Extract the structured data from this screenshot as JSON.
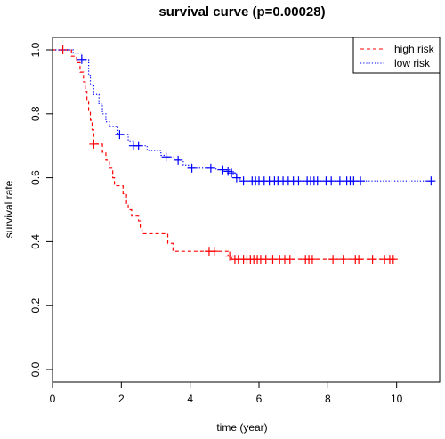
{
  "chart_data": {
    "type": "line",
    "title": "survival curve (p=0.00028)",
    "xlabel": "time (year)",
    "ylabel": "survival rate",
    "xlim": [
      0,
      11.25
    ],
    "ylim": [
      0,
      1
    ],
    "x_ticks": [
      "0",
      "2",
      "4",
      "6",
      "8",
      "10"
    ],
    "y_ticks": [
      "0.0",
      "0.2",
      "0.4",
      "0.6",
      "0.8",
      "1.0"
    ],
    "legend_position": "top-right",
    "grid": false,
    "series": [
      {
        "name": "high risk",
        "color": "#ff0000",
        "line_style": "dashed",
        "steps": [
          [
            0,
            1.0
          ],
          [
            0.55,
            0.98
          ],
          [
            0.7,
            0.96
          ],
          [
            0.8,
            0.93
          ],
          [
            0.9,
            0.9
          ],
          [
            0.95,
            0.87
          ],
          [
            1.0,
            0.84
          ],
          [
            1.05,
            0.81
          ],
          [
            1.1,
            0.78
          ],
          [
            1.15,
            0.75
          ],
          [
            1.2,
            0.705
          ],
          [
            1.45,
            0.68
          ],
          [
            1.55,
            0.655
          ],
          [
            1.65,
            0.63
          ],
          [
            1.75,
            0.6
          ],
          [
            1.8,
            0.575
          ],
          [
            2.05,
            0.55
          ],
          [
            2.15,
            0.52
          ],
          [
            2.2,
            0.5
          ],
          [
            2.3,
            0.48
          ],
          [
            2.5,
            0.465
          ],
          [
            2.55,
            0.445
          ],
          [
            2.6,
            0.425
          ],
          [
            3.35,
            0.395
          ],
          [
            3.5,
            0.37
          ],
          [
            4.6,
            0.37
          ],
          [
            5.1,
            0.355
          ],
          [
            5.2,
            0.345
          ],
          [
            9.95,
            0.345
          ]
        ],
        "censored": [
          [
            0.3,
            1.0
          ],
          [
            1.2,
            0.705
          ],
          [
            4.55,
            0.37
          ],
          [
            4.7,
            0.37
          ],
          [
            5.15,
            0.355
          ],
          [
            5.3,
            0.345
          ],
          [
            5.4,
            0.345
          ],
          [
            5.55,
            0.345
          ],
          [
            5.65,
            0.345
          ],
          [
            5.75,
            0.345
          ],
          [
            5.85,
            0.345
          ],
          [
            5.95,
            0.345
          ],
          [
            6.05,
            0.345
          ],
          [
            6.2,
            0.345
          ],
          [
            6.4,
            0.345
          ],
          [
            6.6,
            0.345
          ],
          [
            6.75,
            0.345
          ],
          [
            6.9,
            0.345
          ],
          [
            7.35,
            0.345
          ],
          [
            7.45,
            0.345
          ],
          [
            7.55,
            0.345
          ],
          [
            8.15,
            0.345
          ],
          [
            8.45,
            0.345
          ],
          [
            8.8,
            0.345
          ],
          [
            8.9,
            0.345
          ],
          [
            9.3,
            0.345
          ],
          [
            9.65,
            0.345
          ],
          [
            9.8,
            0.345
          ],
          [
            9.9,
            0.345
          ]
        ]
      },
      {
        "name": "low risk",
        "color": "#0000ff",
        "line_style": "dotted",
        "steps": [
          [
            0,
            1.0
          ],
          [
            0.6,
            0.99
          ],
          [
            0.85,
            0.97
          ],
          [
            1.05,
            0.92
          ],
          [
            1.1,
            0.89
          ],
          [
            1.2,
            0.86
          ],
          [
            1.35,
            0.83
          ],
          [
            1.45,
            0.8
          ],
          [
            1.55,
            0.775
          ],
          [
            1.65,
            0.76
          ],
          [
            1.9,
            0.735
          ],
          [
            2.2,
            0.715
          ],
          [
            2.35,
            0.7
          ],
          [
            2.75,
            0.685
          ],
          [
            3.15,
            0.67
          ],
          [
            3.3,
            0.665
          ],
          [
            3.55,
            0.655
          ],
          [
            3.8,
            0.64
          ],
          [
            3.95,
            0.63
          ],
          [
            4.75,
            0.625
          ],
          [
            5.2,
            0.62
          ],
          [
            5.25,
            0.61
          ],
          [
            5.35,
            0.6
          ],
          [
            5.45,
            0.59
          ],
          [
            11.0,
            0.59
          ]
        ],
        "censored": [
          [
            0.85,
            0.97
          ],
          [
            1.95,
            0.735
          ],
          [
            2.35,
            0.7
          ],
          [
            2.5,
            0.7
          ],
          [
            3.3,
            0.665
          ],
          [
            3.65,
            0.655
          ],
          [
            4.05,
            0.63
          ],
          [
            4.6,
            0.63
          ],
          [
            4.95,
            0.625
          ],
          [
            5.1,
            0.62
          ],
          [
            5.2,
            0.615
          ],
          [
            5.35,
            0.6
          ],
          [
            5.55,
            0.59
          ],
          [
            5.8,
            0.59
          ],
          [
            5.9,
            0.59
          ],
          [
            6.0,
            0.59
          ],
          [
            6.15,
            0.59
          ],
          [
            6.3,
            0.59
          ],
          [
            6.45,
            0.59
          ],
          [
            6.55,
            0.59
          ],
          [
            6.7,
            0.59
          ],
          [
            6.85,
            0.59
          ],
          [
            7.0,
            0.59
          ],
          [
            7.15,
            0.59
          ],
          [
            7.4,
            0.59
          ],
          [
            7.5,
            0.59
          ],
          [
            7.6,
            0.59
          ],
          [
            7.7,
            0.59
          ],
          [
            7.95,
            0.59
          ],
          [
            8.1,
            0.59
          ],
          [
            8.35,
            0.59
          ],
          [
            8.55,
            0.59
          ],
          [
            8.65,
            0.59
          ],
          [
            8.75,
            0.59
          ],
          [
            8.95,
            0.59
          ],
          [
            11.0,
            0.59
          ]
        ]
      }
    ]
  }
}
